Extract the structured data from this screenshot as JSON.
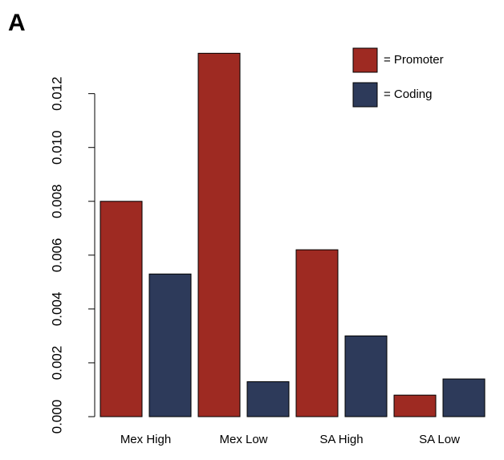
{
  "chart_data": {
    "type": "bar",
    "panel_label": "A",
    "categories": [
      "Mex High",
      "Mex Low",
      "SA High",
      "SA Low"
    ],
    "series": [
      {
        "name": "= Promoter",
        "color": "#9e2a22",
        "values": [
          0.008,
          0.0135,
          0.0062,
          0.0008
        ]
      },
      {
        "name": "= Coding",
        "color": "#2d3a5a",
        "values": [
          0.0053,
          0.0013,
          0.003,
          0.0014
        ]
      }
    ],
    "ylim": [
      0,
      0.0136
    ],
    "yticks": [
      {
        "value": 0,
        "label": "0.000"
      },
      {
        "value": 0.002,
        "label": "0.002"
      },
      {
        "value": 0.004,
        "label": "0.004"
      },
      {
        "value": 0.006,
        "label": "0.006"
      },
      {
        "value": 0.008,
        "label": "0.008"
      },
      {
        "value": 0.01,
        "label": "0.010"
      },
      {
        "value": 0.012,
        "label": "0.012"
      }
    ],
    "legend": "top-right"
  }
}
